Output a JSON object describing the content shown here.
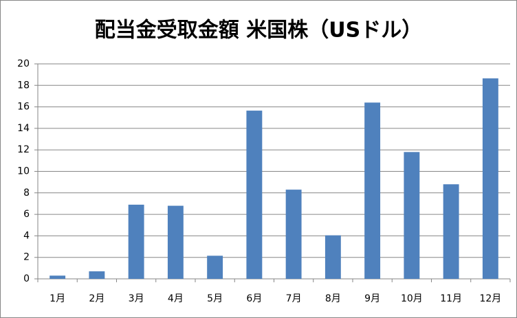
{
  "chart_data": {
    "type": "bar",
    "title": "配当金受取金額 米国株（USドル）",
    "categories": [
      "1月",
      "2月",
      "3月",
      "4月",
      "5月",
      "6月",
      "7月",
      "8月",
      "9月",
      "10月",
      "11月",
      "12月"
    ],
    "values": [
      0.3,
      0.7,
      6.9,
      6.8,
      2.15,
      15.65,
      8.3,
      4.05,
      16.4,
      11.8,
      8.8,
      18.65
    ],
    "color": "#4f81bd",
    "ylim": [
      0,
      20
    ],
    "yticks": [
      0,
      2,
      4,
      6,
      8,
      10,
      12,
      14,
      16,
      18,
      20
    ],
    "grid": true
  }
}
